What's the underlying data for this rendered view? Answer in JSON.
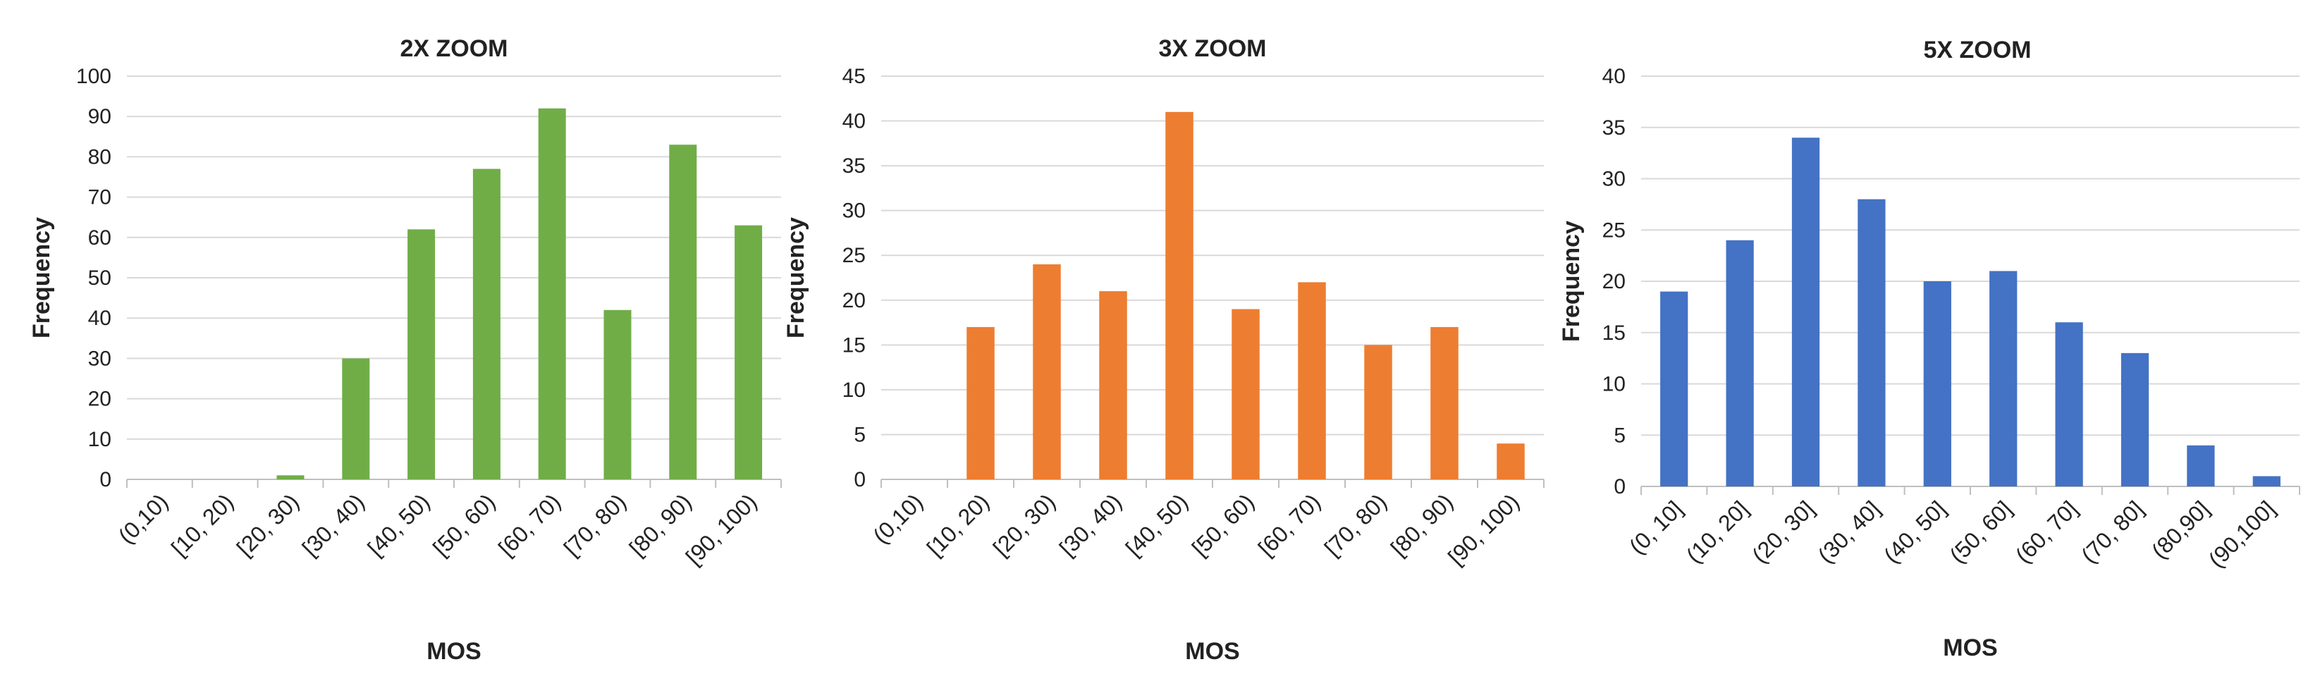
{
  "chart_data": [
    {
      "type": "bar",
      "title": "2X ZOOM",
      "xlabel": "MOS",
      "ylabel": "Frequency",
      "categories": [
        "(0,10)",
        "[10, 20)",
        "[20, 30)",
        "[30, 40)",
        "[40, 50)",
        "[50, 60)",
        "[60, 70)",
        "[70, 80)",
        "[80, 90)",
        "[90, 100)"
      ],
      "values": [
        0,
        0,
        1,
        30,
        62,
        77,
        92,
        42,
        83,
        63
      ],
      "ylim": [
        0,
        100
      ],
      "ytick_step": 10,
      "grid": true,
      "color": "#70ad47"
    },
    {
      "type": "bar",
      "title": "3X ZOOM",
      "xlabel": "MOS",
      "ylabel": "Frequency",
      "categories": [
        "(0,10)",
        "[10, 20)",
        "[20, 30)",
        "[30, 40)",
        "[40, 50)",
        "[50, 60)",
        "[60, 70)",
        "[70, 80)",
        "[80, 90)",
        "[90, 100)"
      ],
      "values": [
        0,
        17,
        24,
        21,
        41,
        19,
        22,
        15,
        17,
        4
      ],
      "ylim": [
        0,
        45
      ],
      "ytick_step": 5,
      "grid": true,
      "color": "#ed7d31"
    },
    {
      "type": "bar",
      "title": "5X ZOOM",
      "xlabel": "MOS",
      "ylabel": "Frequency",
      "categories": [
        "(0, 10]",
        "(10, 20]",
        "(20, 30]",
        "(30, 40]",
        "(40, 50]",
        "(50, 60]",
        "(60, 70]",
        "(70, 80]",
        "(80,90]",
        "(90,100]"
      ],
      "values": [
        19,
        24,
        34,
        28,
        20,
        21,
        16,
        13,
        4,
        1
      ],
      "ylim": [
        0,
        40
      ],
      "ytick_step": 5,
      "grid": true,
      "color": "#4472c4"
    }
  ]
}
